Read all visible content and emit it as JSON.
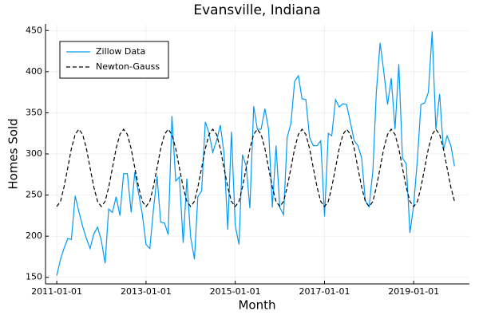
{
  "chart_data": {
    "type": "line",
    "title": "Evansville, Indiana",
    "xlabel": "Month",
    "ylabel": "Homes Sold",
    "x": [
      "2011-01-01",
      "2011-02-01",
      "2011-03-01",
      "2011-04-01",
      "2011-05-01",
      "2011-06-01",
      "2011-07-01",
      "2011-08-01",
      "2011-09-01",
      "2011-10-01",
      "2011-11-01",
      "2011-12-01",
      "2012-01-01",
      "2012-02-01",
      "2012-03-01",
      "2012-04-01",
      "2012-05-01",
      "2012-06-01",
      "2012-07-01",
      "2012-08-01",
      "2012-09-01",
      "2012-10-01",
      "2012-11-01",
      "2012-12-01",
      "2013-01-01",
      "2013-02-01",
      "2013-03-01",
      "2013-04-01",
      "2013-05-01",
      "2013-06-01",
      "2013-07-01",
      "2013-08-01",
      "2013-09-01",
      "2013-10-01",
      "2013-11-01",
      "2013-12-01",
      "2014-01-01",
      "2014-02-01",
      "2014-03-01",
      "2014-04-01",
      "2014-05-01",
      "2014-06-01",
      "2014-07-01",
      "2014-08-01",
      "2014-09-01",
      "2014-10-01",
      "2014-11-01",
      "2014-12-01",
      "2015-01-01",
      "2015-02-01",
      "2015-03-01",
      "2015-04-01",
      "2015-05-01",
      "2015-06-01",
      "2015-07-01",
      "2015-08-01",
      "2015-09-01",
      "2015-10-01",
      "2015-11-01",
      "2015-12-01",
      "2016-01-01",
      "2016-02-01",
      "2016-03-01",
      "2016-04-01",
      "2016-05-01",
      "2016-06-01",
      "2016-07-01",
      "2016-08-01",
      "2016-09-01",
      "2016-10-01",
      "2016-11-01",
      "2016-12-01",
      "2017-01-01",
      "2017-02-01",
      "2017-03-01",
      "2017-04-01",
      "2017-05-01",
      "2017-06-01",
      "2017-07-01",
      "2017-08-01",
      "2017-09-01",
      "2017-10-01",
      "2017-11-01",
      "2017-12-01",
      "2018-01-01",
      "2018-02-01",
      "2018-03-01",
      "2018-04-01",
      "2018-05-01",
      "2018-06-01",
      "2018-07-01",
      "2018-08-01",
      "2018-09-01",
      "2018-10-01",
      "2018-11-01",
      "2018-12-01",
      "2019-01-01",
      "2019-02-01",
      "2019-03-01",
      "2019-04-01",
      "2019-05-01",
      "2019-06-01",
      "2019-07-01",
      "2019-08-01",
      "2019-09-01",
      "2019-10-01",
      "2019-11-01",
      "2019-12-01"
    ],
    "series": [
      {
        "name": "Zillow Data",
        "color": "#009af9",
        "dash": false,
        "values": [
          152,
          172,
          185,
          197,
          196,
          249,
          230,
          212,
          197,
          185,
          203,
          211,
          195,
          167,
          233,
          229,
          248,
          225,
          276,
          276,
          229,
          278,
          252,
          227,
          190,
          185,
          230,
          273,
          217,
          216,
          202,
          346,
          267,
          272,
          192,
          270,
          199,
          172,
          248,
          255,
          339,
          325,
          302,
          316,
          335,
          301,
          208,
          327,
          213,
          190,
          299,
          285,
          234,
          358,
          330,
          330,
          355,
          330,
          235,
          310,
          235,
          226,
          320,
          337,
          388,
          395,
          367,
          366,
          320,
          310,
          310,
          316,
          224,
          325,
          322,
          366,
          357,
          361,
          360,
          338,
          316,
          310,
          295,
          243,
          236,
          280,
          375,
          435,
          400,
          360,
          392,
          330,
          409,
          295,
          288,
          204,
          238,
          295,
          360,
          362,
          375,
          449,
          330,
          373,
          305,
          322,
          310,
          285
        ]
      },
      {
        "name": "Newton-Gauss",
        "color": "#000000",
        "dash": true,
        "values": [
          236,
          242.3,
          259.5,
          283,
          306.5,
          323.7,
          330,
          323.7,
          306.5,
          283,
          259.5,
          242.3,
          236,
          242.3,
          259.5,
          283,
          306.5,
          323.7,
          330,
          323.7,
          306.5,
          283,
          259.5,
          242.3,
          236,
          242.3,
          259.5,
          283,
          306.5,
          323.7,
          330,
          323.7,
          306.5,
          283,
          259.5,
          242.3,
          236,
          242.3,
          259.5,
          283,
          306.5,
          323.7,
          330,
          323.7,
          306.5,
          283,
          259.5,
          242.3,
          236,
          242.3,
          259.5,
          283,
          306.5,
          323.7,
          330,
          323.7,
          306.5,
          283,
          259.5,
          242.3,
          236,
          242.3,
          259.5,
          283,
          306.5,
          323.7,
          330,
          323.7,
          306.5,
          283,
          259.5,
          242.3,
          236,
          242.3,
          259.5,
          283,
          306.5,
          323.7,
          330,
          323.7,
          306.5,
          283,
          259.5,
          242.3,
          236,
          242.3,
          259.5,
          283,
          306.5,
          323.7,
          330,
          323.7,
          306.5,
          283,
          259.5,
          242.3,
          236,
          242.3,
          259.5,
          283,
          306.5,
          323.7,
          330,
          323.7,
          306.5,
          283,
          259.5,
          242.3
        ]
      }
    ],
    "xlim": [
      "2010-10-01",
      "2020-04-01"
    ],
    "xticks": [
      "2011-01-01",
      "2013-01-01",
      "2015-01-01",
      "2017-01-01",
      "2019-01-01"
    ],
    "ylim": [
      142,
      458
    ],
    "yticks": [
      150,
      200,
      250,
      300,
      350,
      400,
      450
    ],
    "grid": true,
    "legend": "top-left"
  }
}
